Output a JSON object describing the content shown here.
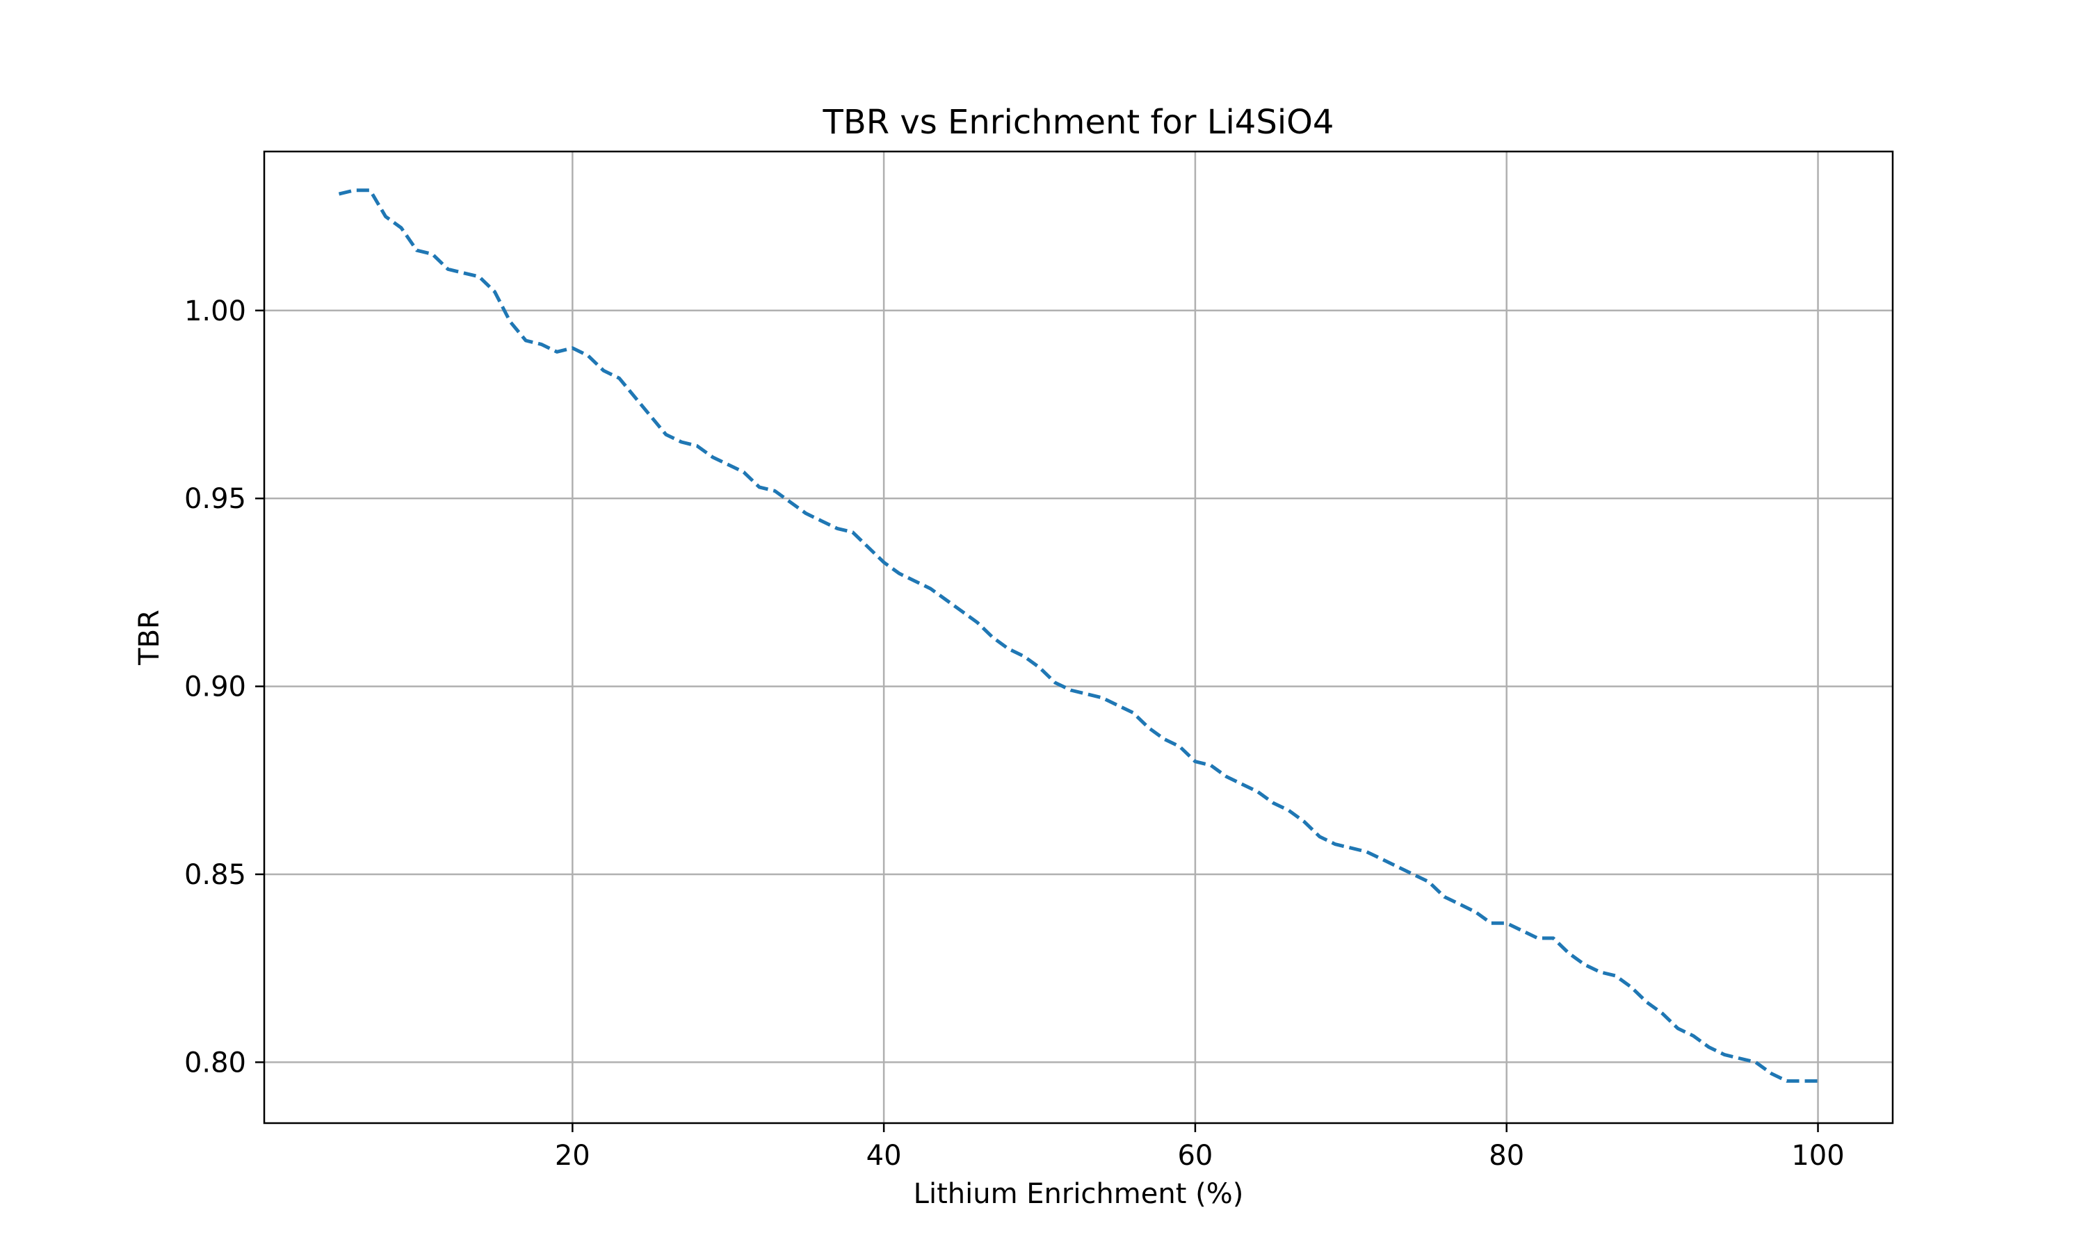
{
  "chart_data": {
    "type": "line",
    "title": "TBR vs Enrichment for Li4SiO4",
    "xlabel": "Lithium Enrichment (%)",
    "ylabel": "TBR",
    "xlim": [
      0.2,
      104.8
    ],
    "ylim": [
      0.7838,
      1.0423
    ],
    "xticks": [
      20,
      40,
      60,
      80,
      100
    ],
    "xtick_labels": [
      "20",
      "40",
      "60",
      "80",
      "100"
    ],
    "yticks": [
      0.8,
      0.85,
      0.9,
      0.95,
      1.0
    ],
    "ytick_labels": [
      "0.80",
      "0.85",
      "0.90",
      "0.95",
      "1.00"
    ],
    "grid": true,
    "legend": "none",
    "series": [
      {
        "color": "#1f77b4",
        "line_style": "dashed",
        "x": [
          5,
          6,
          7,
          8,
          9,
          10,
          11,
          12,
          13,
          14,
          15,
          16,
          17,
          18,
          19,
          20,
          21,
          22,
          23,
          24,
          25,
          26,
          27,
          28,
          29,
          30,
          31,
          32,
          33,
          34,
          35,
          36,
          37,
          38,
          39,
          40,
          41,
          42,
          43,
          44,
          45,
          46,
          47,
          48,
          49,
          50,
          51,
          52,
          53,
          54,
          55,
          56,
          57,
          58,
          59,
          60,
          61,
          62,
          63,
          64,
          65,
          66,
          67,
          68,
          69,
          70,
          71,
          72,
          73,
          74,
          75,
          76,
          77,
          78,
          79,
          80,
          81,
          82,
          83,
          84,
          85,
          86,
          87,
          88,
          89,
          90,
          91,
          92,
          93,
          94,
          95,
          96,
          97,
          98,
          99,
          100
        ],
        "y": [
          1.031,
          1.032,
          1.032,
          1.025,
          1.022,
          1.016,
          1.015,
          1.011,
          1.01,
          1.009,
          1.005,
          0.997,
          0.992,
          0.991,
          0.989,
          0.99,
          0.988,
          0.984,
          0.982,
          0.977,
          0.972,
          0.967,
          0.965,
          0.964,
          0.961,
          0.959,
          0.957,
          0.953,
          0.952,
          0.949,
          0.946,
          0.944,
          0.942,
          0.941,
          0.937,
          0.933,
          0.93,
          0.928,
          0.926,
          0.923,
          0.92,
          0.917,
          0.913,
          0.91,
          0.908,
          0.905,
          0.901,
          0.899,
          0.898,
          0.897,
          0.895,
          0.893,
          0.889,
          0.886,
          0.884,
          0.88,
          0.879,
          0.876,
          0.874,
          0.872,
          0.869,
          0.867,
          0.864,
          0.86,
          0.858,
          0.857,
          0.856,
          0.854,
          0.852,
          0.85,
          0.848,
          0.844,
          0.842,
          0.84,
          0.837,
          0.837,
          0.835,
          0.833,
          0.833,
          0.829,
          0.826,
          0.824,
          0.823,
          0.82,
          0.816,
          0.813,
          0.809,
          0.807,
          0.804,
          0.802,
          0.801,
          0.8,
          0.797,
          0.795,
          0.795,
          0.795
        ]
      }
    ]
  }
}
